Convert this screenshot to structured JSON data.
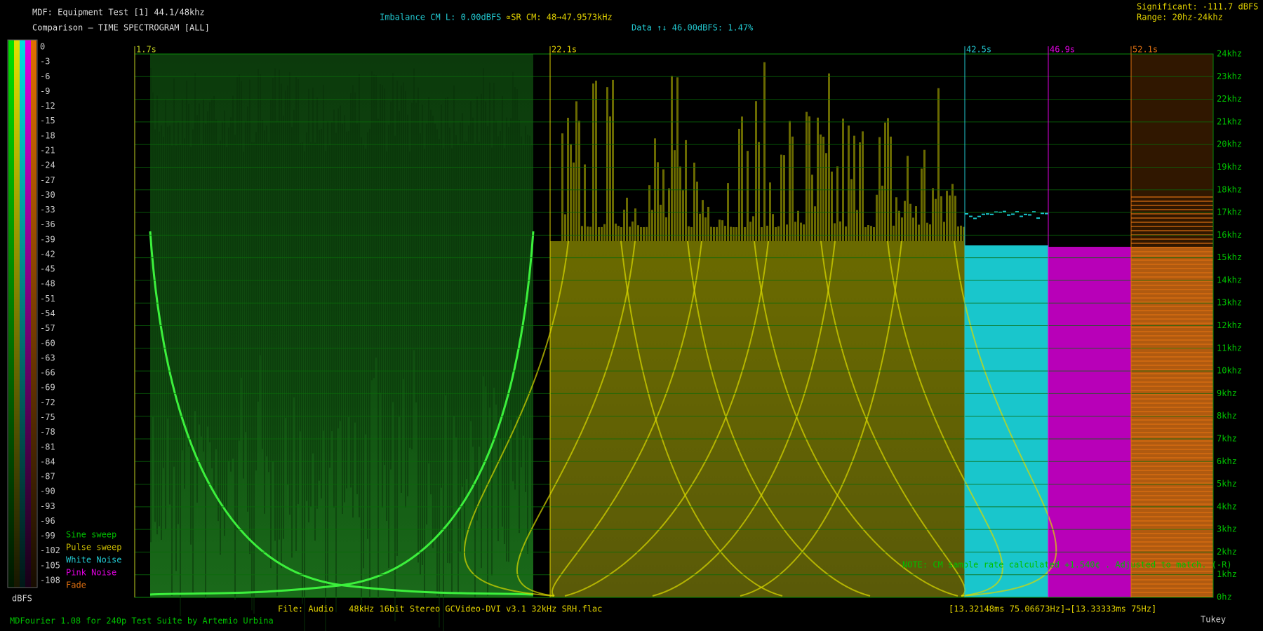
{
  "header": {
    "title": "MDF: Equipment Test [1] 44.1/48khz",
    "subtitle": "Comparison — TIME SPECTROGRAM [ALL]"
  },
  "info": {
    "imbalance": "Imbalance CM L: 0.00dBFS",
    "sample_rate": "∝SR CM: 48→47.9573kHz",
    "data": "Data ↑↓ 46.00dBFS: 1.47%",
    "significant": "Significant: -111.7 dBFS",
    "range": "Range: 20hz-24khz"
  },
  "scale": {
    "ticks": [
      "0",
      "-3",
      "-6",
      "-9",
      "-12",
      "-15",
      "-18",
      "-21",
      "-24",
      "-27",
      "-30",
      "-33",
      "-36",
      "-39",
      "-42",
      "-45",
      "-48",
      "-51",
      "-54",
      "-57",
      "-60",
      "-63",
      "-66",
      "-69",
      "-72",
      "-75",
      "-78",
      "-81",
      "-84",
      "-87",
      "-90",
      "-93",
      "-96",
      "-99",
      "-102",
      "-105",
      "-108"
    ],
    "unit": "dBFS"
  },
  "legend": [
    "Sine sweep",
    "Pulse sweep",
    "White Noise",
    "Pink Noise",
    "Fade"
  ],
  "freq_axis": [
    "24khz",
    "23khz",
    "22khz",
    "21khz",
    "20khz",
    "19khz",
    "18khz",
    "17khz",
    "16khz",
    "15khz",
    "14khz",
    "13khz",
    "12khz",
    "11khz",
    "10khz",
    "9khz",
    "8khz",
    "7khz",
    "6khz",
    "5khz",
    "4khz",
    "3khz",
    "2khz",
    "1khz",
    "0hz"
  ],
  "markers": [
    "1.7s",
    "22.1s",
    "42.5s",
    "46.9s",
    "52.1s"
  ],
  "note": "NOTE: CM sample rate calculated +1.540¢ . Adjusted to match. (-R)",
  "footer": {
    "file": "File: Audio   48kHz 16bit Stereo GCVideo-DVI v3.1 32kHz SRH.flac",
    "timing": "[13.32148ms 75.06673Hz]→[13.33333ms 75Hz]",
    "credit": "MDFourier 1.08 for 240p Test Suite by Artemio Urbina",
    "window": "Tukey"
  }
}
